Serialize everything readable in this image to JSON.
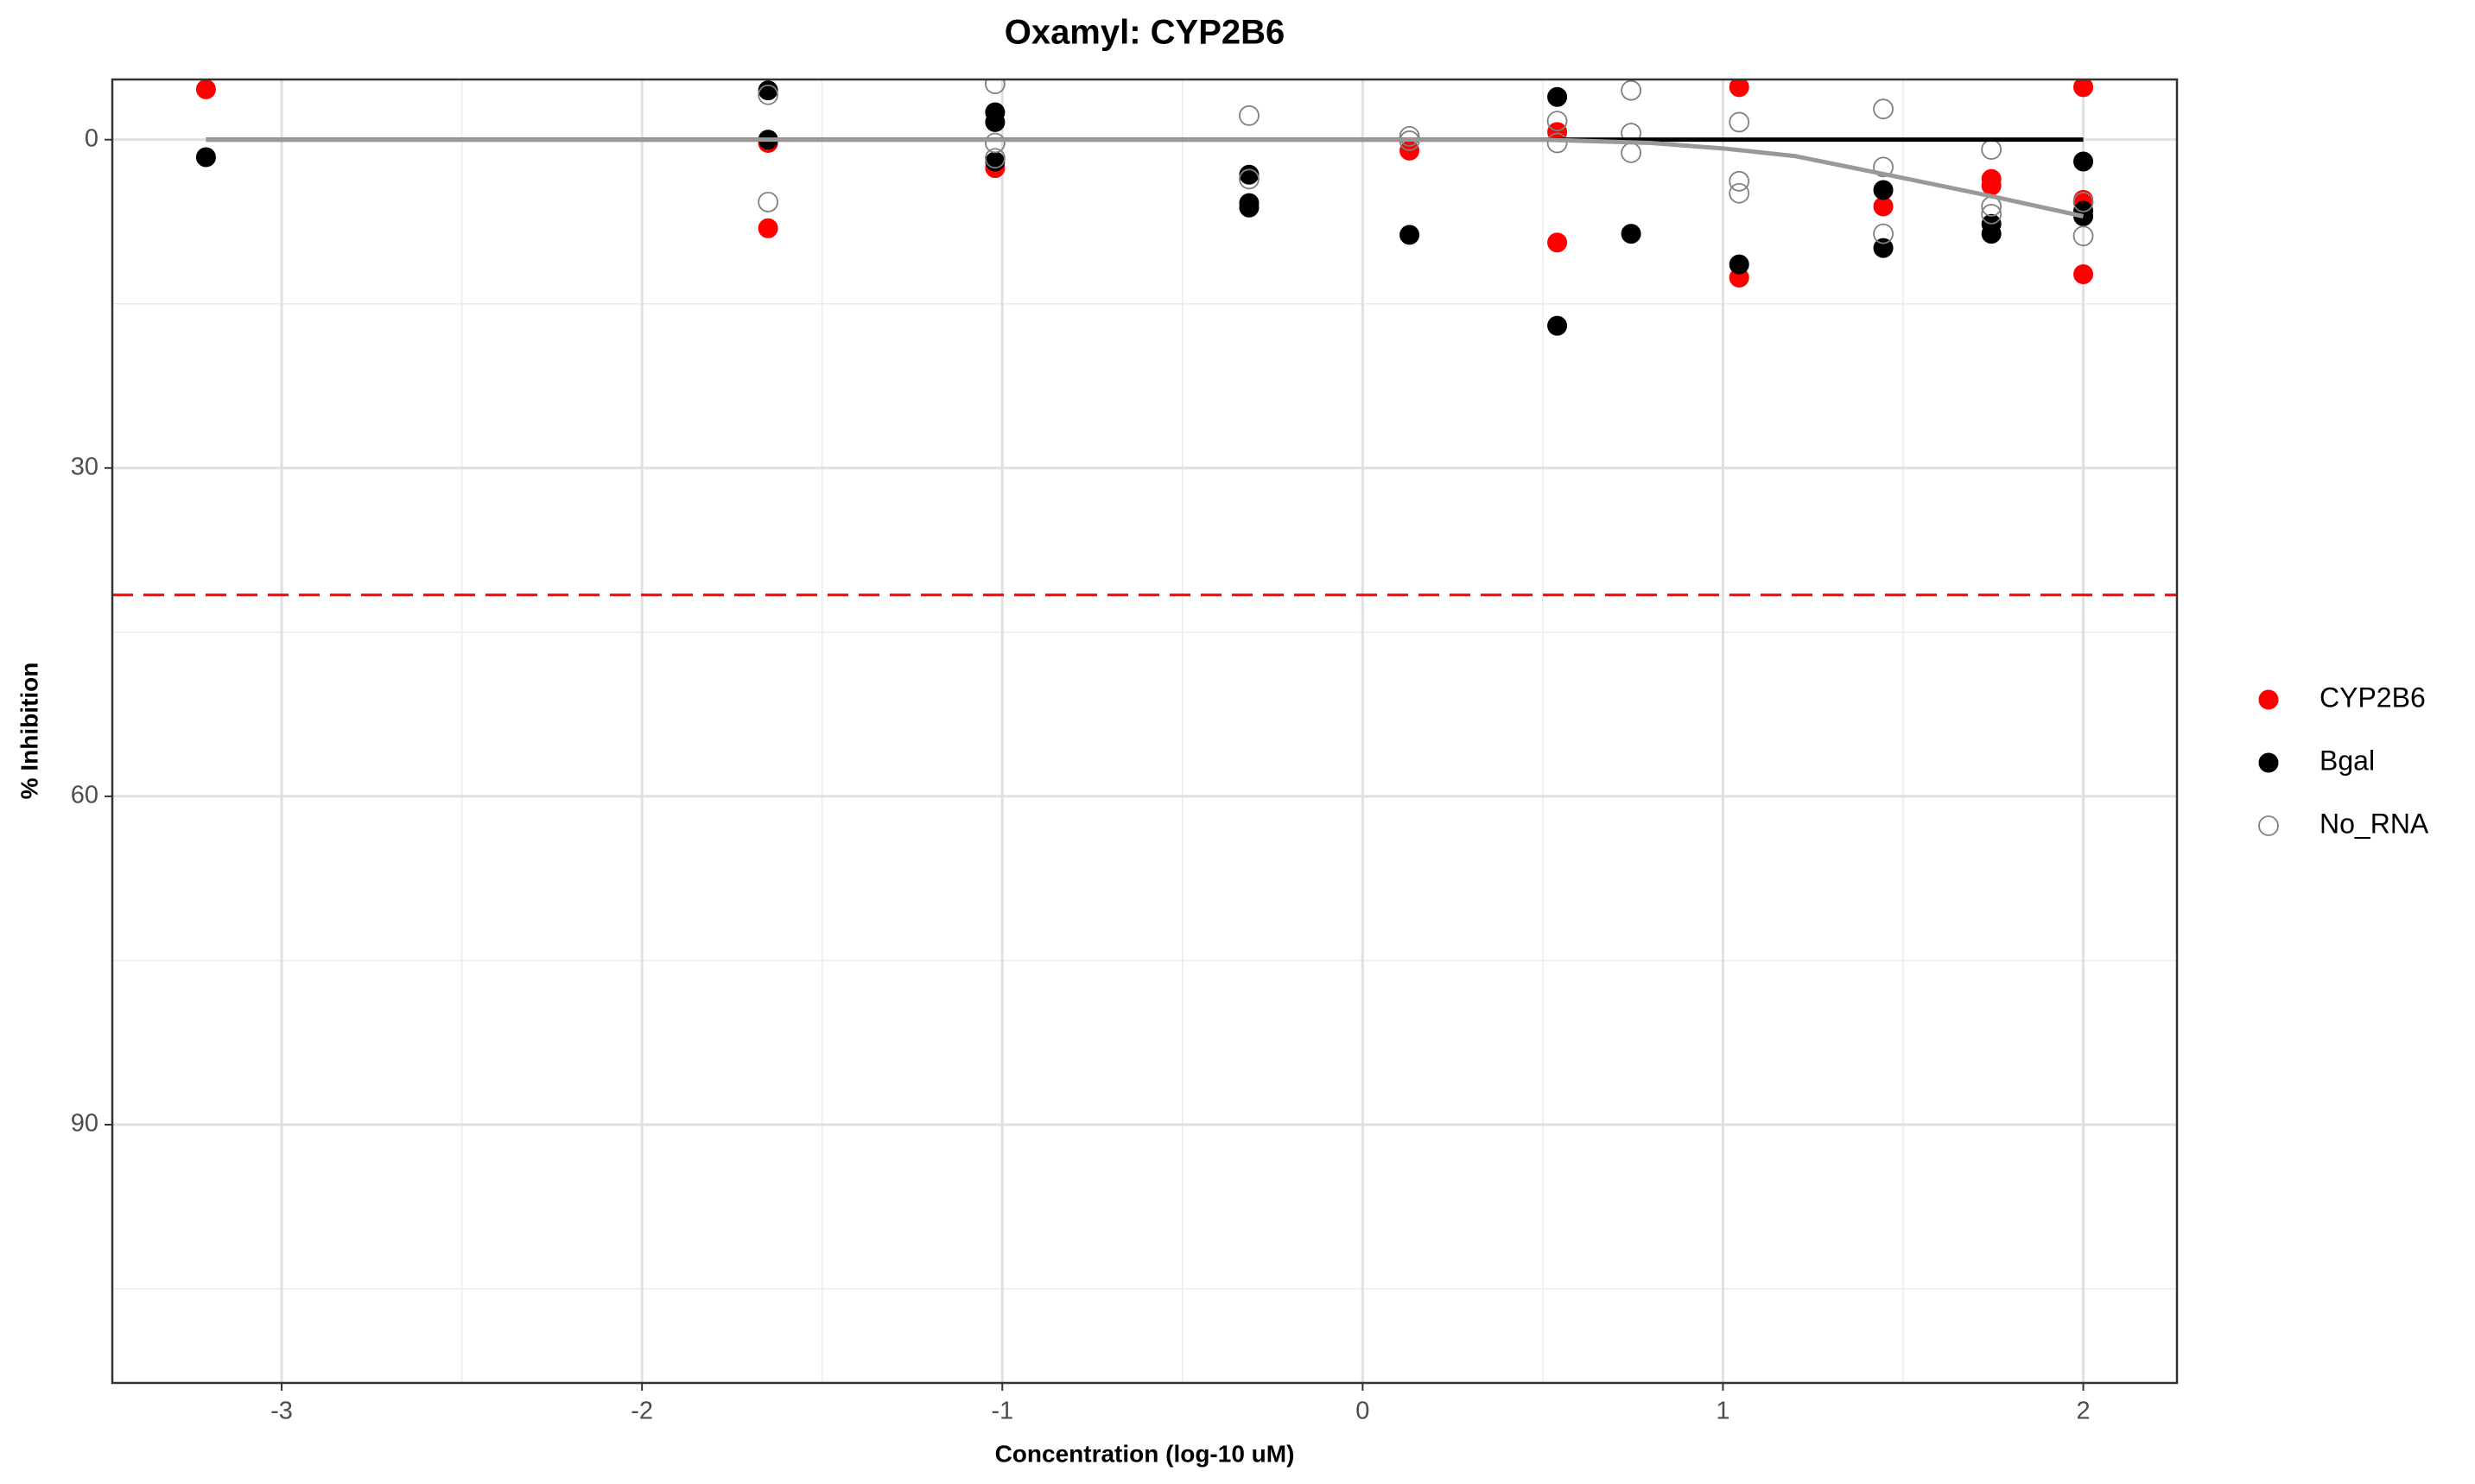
{
  "chart_data": {
    "type": "scatter",
    "title": "Oxamyl: CYP2B6",
    "x_label": "Concentration (log-10 uM)",
    "y_label": "% Inhibition",
    "xlim": [
      -3.47,
      2.26
    ],
    "ylim": [
      -5.5,
      113.6
    ],
    "y_reversed": true,
    "xticks": [
      -3,
      -2,
      -1,
      0,
      1,
      2
    ],
    "yticks": [
      0,
      30,
      60,
      90
    ],
    "grid": true,
    "legend_position": "right",
    "series": [
      {
        "name": "CYP2B6",
        "color": "#ff0000",
        "filled": true,
        "x": [
          -3.21,
          -1.65,
          -1.65,
          -1.02,
          0.13,
          0.54,
          0.54,
          1.045,
          1.045,
          1.445,
          1.745,
          1.745,
          2,
          2,
          2
        ],
        "values": [
          -4.6,
          0.3,
          8.1,
          2.6,
          1.0,
          -0.7,
          9.4,
          -4.8,
          12.6,
          6.1,
          3.6,
          4.2,
          -4.8,
          5.5,
          12.3
        ]
      },
      {
        "name": "Bgal",
        "color": "#000000",
        "filled": true,
        "x": [
          -3.21,
          -1.65,
          -1.65,
          -1.02,
          -1.02,
          -1.02,
          -0.315,
          -0.315,
          -0.315,
          0.13,
          0.54,
          0.54,
          0.745,
          1.045,
          1.445,
          1.445,
          1.745,
          1.745,
          2,
          2,
          2
        ],
        "values": [
          1.6,
          -4.5,
          0,
          -2.5,
          -1.6,
          2.0,
          3.2,
          5.8,
          6.2,
          8.7,
          -3.9,
          17.0,
          8.6,
          11.4,
          4.6,
          9.9,
          7.7,
          8.6,
          2.0,
          6.5,
          7.0
        ]
      },
      {
        "name": "No_RNA",
        "color": "#808080",
        "filled": false,
        "x": [
          -1.65,
          -1.65,
          -1.02,
          -1.02,
          -1.02,
          -0.315,
          -0.315,
          0.13,
          0.13,
          0.54,
          0.54,
          0.745,
          0.745,
          0.745,
          1.045,
          1.045,
          1.045,
          1.445,
          1.445,
          1.445,
          1.745,
          1.745,
          1.745,
          2,
          2
        ],
        "values": [
          -4.1,
          5.7,
          -5.1,
          0.3,
          1.7,
          -2.2,
          3.6,
          -0.3,
          0.1,
          -1.7,
          0.3,
          -4.5,
          -0.6,
          1.2,
          -1.6,
          3.8,
          4.9,
          -2.8,
          2.5,
          8.6,
          0.9,
          6.1,
          6.8,
          5.7,
          8.8
        ]
      }
    ],
    "fits": [
      {
        "color": "#000000",
        "x": [
          -3.21,
          2
        ],
        "values": [
          0,
          0
        ]
      },
      {
        "color": "#999999",
        "x": [
          -3.21,
          0.5,
          0.8,
          1.0,
          1.2,
          1.5,
          1.75,
          2
        ],
        "values": [
          0,
          0,
          0.3,
          0.8,
          1.5,
          3.5,
          5.2,
          7
        ]
      }
    ],
    "hline": {
      "value": 41.6,
      "color": "#ff0000"
    }
  }
}
